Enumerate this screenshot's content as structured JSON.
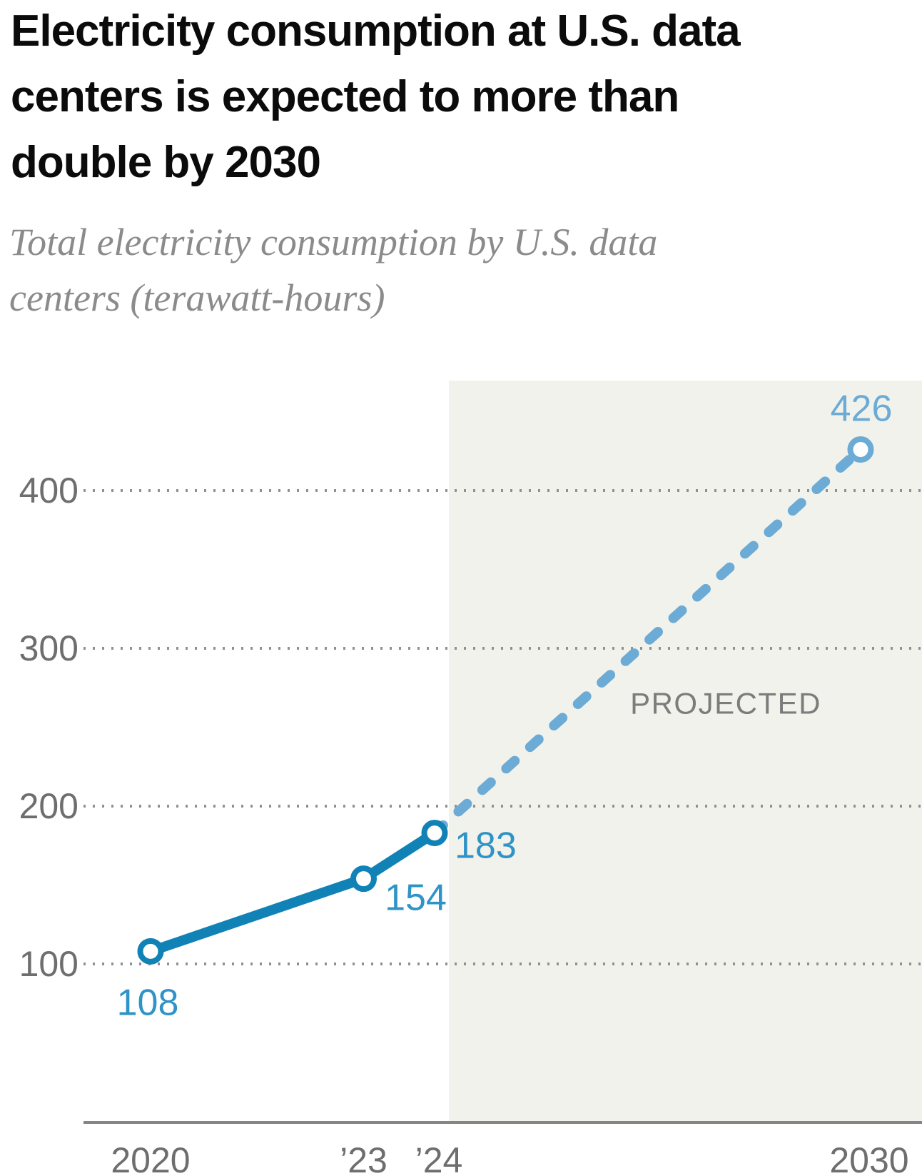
{
  "header": {
    "title_lines": [
      "Electricity consumption at U.S. data",
      "centers is expected to more than",
      "double by 2030"
    ],
    "subtitle_lines": [
      "Total electricity consumption by U.S. data",
      "centers (terawatt-hours)"
    ]
  },
  "chart_data": {
    "type": "line",
    "title": "Electricity consumption at U.S. data centers is expected to more than double by 2030",
    "subtitle": "Total electricity consumption by U.S. data centers (terawatt-hours)",
    "unit": "terawatt-hours",
    "x": [
      2020,
      2023,
      2024,
      2030
    ],
    "series": [
      {
        "name": "actual",
        "style": "solid",
        "x": [
          2020,
          2023,
          2024
        ],
        "values": [
          108,
          154,
          183
        ]
      },
      {
        "name": "projected",
        "style": "dashed",
        "x": [
          2024,
          2030
        ],
        "values": [
          183,
          426
        ]
      }
    ],
    "point_labels": [
      {
        "year": 2020,
        "value": 108,
        "label": "108"
      },
      {
        "year": 2023,
        "value": 154,
        "label": "154"
      },
      {
        "year": 2024,
        "value": 183,
        "label": "183"
      },
      {
        "year": 2030,
        "value": 426,
        "label": "426"
      }
    ],
    "yticks": [
      100,
      200,
      300,
      400
    ],
    "xticks": [
      {
        "year": 2020,
        "label": "2020"
      },
      {
        "year": 2023,
        "label": "’23"
      },
      {
        "year": 2024,
        "label": "’24"
      },
      {
        "year": 2030,
        "label": "2030"
      }
    ],
    "ylim": [
      0,
      470
    ],
    "grid": "dotted-horizontal",
    "legend": "none",
    "projected_region_start_year": 2024.2,
    "annotation": {
      "text": "PROJECTED"
    }
  },
  "colors": {
    "line_actual": "#1182b6",
    "line_projected": "#6cabd5",
    "label_actual": "#2e93c6",
    "label_projected": "#6cabd5",
    "projected_bg": "#f2f2ec",
    "grid_dot": "#909090",
    "axis": "#858585",
    "tick_text": "#6e6e6e",
    "projected_text": "#7c7c7c",
    "title_text": "#0b0b0b",
    "subtitle_text": "#8b8b8b",
    "marker_fill": "#ffffff"
  }
}
